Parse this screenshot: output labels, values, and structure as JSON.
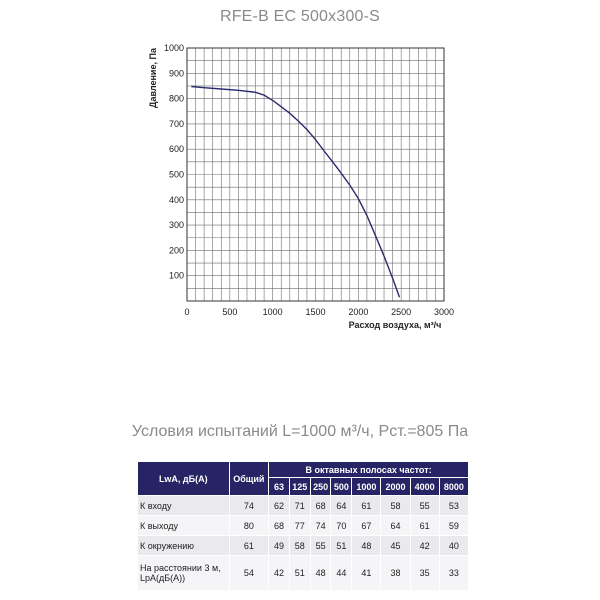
{
  "title": "RFE-B EC 500x300-S",
  "chart_data": {
    "type": "line",
    "xlabel": "Расход воздуха, м³/ч",
    "ylabel": "Давление, Па",
    "xlim": [
      0,
      3000
    ],
    "ylim": [
      0,
      1000
    ],
    "x_ticks": [
      0,
      500,
      1000,
      1500,
      2000,
      2500,
      3000
    ],
    "y_ticks": [
      100,
      200,
      300,
      400,
      500,
      600,
      700,
      800,
      900,
      1000
    ],
    "x_tick_labels": [
      "0",
      "500",
      "1000",
      "1500",
      "2000",
      "2500",
      "3000"
    ],
    "y_tick_labels": [
      "100",
      "200",
      "300",
      "400",
      "500",
      "600",
      "700",
      "800",
      "900",
      "1000"
    ],
    "grid": true,
    "series": [
      {
        "color": "#2b2a6e",
        "points": [
          [
            50,
            848
          ],
          [
            200,
            843
          ],
          [
            400,
            838
          ],
          [
            600,
            833
          ],
          [
            800,
            825
          ],
          [
            900,
            814
          ],
          [
            1000,
            793
          ],
          [
            1100,
            768
          ],
          [
            1200,
            742
          ],
          [
            1300,
            711
          ],
          [
            1400,
            678
          ],
          [
            1500,
            638
          ],
          [
            1600,
            593
          ],
          [
            1700,
            550
          ],
          [
            1800,
            505
          ],
          [
            1900,
            458
          ],
          [
            2000,
            405
          ],
          [
            2100,
            338
          ],
          [
            2200,
            258
          ],
          [
            2300,
            178
          ],
          [
            2400,
            90
          ],
          [
            2480,
            15
          ]
        ]
      }
    ]
  },
  "test_conditions": "Условия испытаний L=1000 м³/ч, Рст.=805 Па",
  "table": {
    "col_lwa": "LwA, дБ(A)",
    "col_total": "Общий",
    "col_group": "В октавных полосах частот:",
    "bands": [
      "63",
      "125",
      "250",
      "500",
      "1000",
      "2000",
      "4000",
      "8000"
    ],
    "rows": [
      {
        "label": "К входу",
        "total": "74",
        "values": [
          "62",
          "71",
          "68",
          "64",
          "61",
          "58",
          "55",
          "53"
        ]
      },
      {
        "label": "К выходу",
        "total": "80",
        "values": [
          "68",
          "77",
          "74",
          "70",
          "67",
          "64",
          "61",
          "59"
        ]
      },
      {
        "label": "К окружению",
        "total": "61",
        "values": [
          "49",
          "58",
          "55",
          "51",
          "48",
          "45",
          "42",
          "40"
        ]
      },
      {
        "label": "На расстоянии 3 м, LpA(дБ(A))",
        "total": "54",
        "values": [
          "42",
          "51",
          "48",
          "44",
          "41",
          "38",
          "35",
          "33"
        ]
      }
    ]
  }
}
